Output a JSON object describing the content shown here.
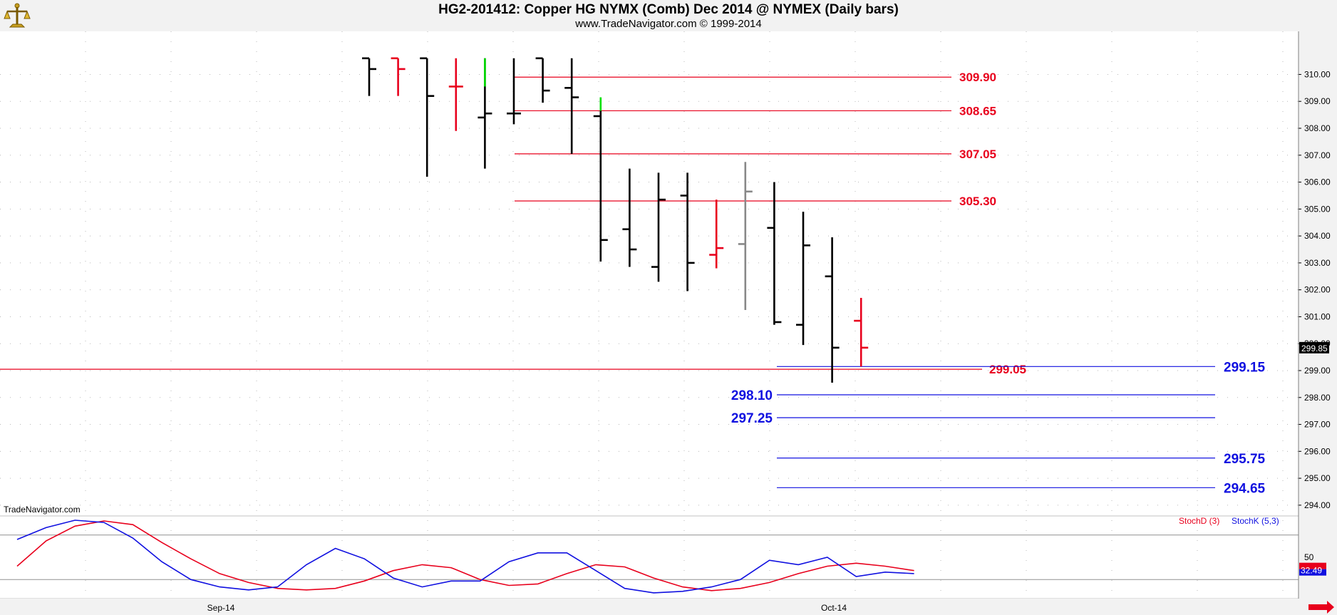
{
  "header": {
    "title": "HG2-201412:  Copper HG NYMX (Comb) Dec 2014 @ NYMEX  (Daily bars)",
    "subtitle": "www.TradeNavigator.com © 1999-2014",
    "logo_icon": "scales-logo-icon"
  },
  "watermark": "TradeNavigator.com",
  "colors": {
    "bar_default": "#000000",
    "bar_red": "#e8001c",
    "bar_green": "#00e000",
    "bar_gray": "#888888",
    "resistance": "#e8001c",
    "support": "#1010e0",
    "stoch_d": "#e8001c",
    "stoch_k": "#1010e0"
  },
  "chart_data": [
    {
      "type": "ohlc",
      "ylim": [
        293.6,
        311.6
      ],
      "y_ticks": [
        "310.00",
        "309.00",
        "308.00",
        "307.00",
        "306.00",
        "305.00",
        "304.00",
        "303.00",
        "302.00",
        "301.00",
        "300.00",
        "299.00",
        "298.00",
        "297.00",
        "296.00",
        "295.00",
        "294.00"
      ],
      "x_labels": [
        {
          "label": "Sep-14",
          "bar_index": 7
        },
        {
          "label": "Oct-14",
          "bar_index": 28
        }
      ],
      "bars": [
        {
          "o": 310.6,
          "h": 310.6,
          "l": 309.2,
          "c": 310.2,
          "color": "bar_default"
        },
        {
          "o": 310.6,
          "h": 310.6,
          "l": 309.2,
          "c": 310.2,
          "color": "bar_red"
        },
        {
          "o": 310.6,
          "h": 310.6,
          "l": 306.2,
          "c": 309.2,
          "color": "bar_default"
        },
        {
          "o": 309.55,
          "h": 310.6,
          "l": 307.9,
          "c": 309.55,
          "color": "bar_red"
        },
        {
          "o": 308.4,
          "h": 310.6,
          "l": 306.5,
          "c": 308.55,
          "color": "bar_default"
        },
        {
          "o": 308.55,
          "h": 310.6,
          "l": 308.15,
          "c": 308.55,
          "color": "bar_default"
        },
        {
          "o": 310.6,
          "h": 310.6,
          "l": 308.95,
          "c": 309.4,
          "color": "bar_default"
        },
        {
          "o": 309.5,
          "h": 310.6,
          "l": 307.05,
          "c": 309.15,
          "color": "bar_default"
        },
        {
          "o": 308.45,
          "h": 308.65,
          "l": 303.05,
          "c": 303.85,
          "color": "bar_default"
        },
        {
          "o": 304.25,
          "h": 306.5,
          "l": 302.85,
          "c": 303.5,
          "color": "bar_default"
        },
        {
          "o": 302.85,
          "h": 306.35,
          "l": 302.3,
          "c": 305.35,
          "color": "bar_default"
        },
        {
          "o": 305.5,
          "h": 306.35,
          "l": 301.95,
          "c": 303.0,
          "color": "bar_default"
        },
        {
          "o": 303.3,
          "h": 305.35,
          "l": 302.8,
          "c": 303.55,
          "color": "bar_red"
        },
        {
          "o": 303.7,
          "h": 306.75,
          "l": 301.25,
          "c": 305.65,
          "color": "bar_gray"
        },
        {
          "o": 304.3,
          "h": 306.0,
          "l": 300.7,
          "c": 300.8,
          "color": "bar_default"
        },
        {
          "o": 300.7,
          "h": 304.9,
          "l": 299.95,
          "c": 303.65,
          "color": "bar_default"
        },
        {
          "o": 302.5,
          "h": 303.95,
          "l": 298.55,
          "c": 299.85,
          "color": "bar_default"
        },
        {
          "o": 300.85,
          "h": 301.7,
          "l": 299.15,
          "c": 299.85,
          "color": "bar_red"
        }
      ],
      "last_price": "299.85",
      "resistance_levels": [
        {
          "label": "309.90",
          "value": 309.9
        },
        {
          "label": "308.65",
          "value": 308.65
        },
        {
          "label": "307.05",
          "value": 307.05
        },
        {
          "label": "305.30",
          "value": 305.3
        },
        {
          "label": "299.05",
          "value": 299.05
        }
      ],
      "support_levels": [
        {
          "label": "299.15",
          "value": 299.15
        },
        {
          "label": "298.10",
          "value": 298.1
        },
        {
          "label": "297.25",
          "value": 297.25
        },
        {
          "label": "295.75",
          "value": 295.75
        },
        {
          "label": "294.65",
          "value": 294.65
        }
      ]
    },
    {
      "type": "line",
      "ylim": [
        0,
        100
      ],
      "y_ticks": [
        "50"
      ],
      "reference_lines": [
        80,
        20
      ],
      "last_value": "32.49",
      "legend": [
        {
          "name": "StochD (3)",
          "color": "stoch_d"
        },
        {
          "name": "StochK (5,3)",
          "color": "stoch_k"
        }
      ],
      "series": [
        {
          "name": "StochD (3)",
          "color": "stoch_d",
          "values": [
            38,
            72,
            92,
            99,
            94,
            70,
            48,
            28,
            16,
            8,
            6,
            8,
            18,
            32,
            40,
            36,
            20,
            12,
            14,
            28,
            40,
            37,
            22,
            10,
            5,
            8,
            16,
            28,
            38,
            42,
            38,
            32
          ]
        },
        {
          "name": "StochK (5,3)",
          "color": "stoch_k",
          "values": [
            74,
            90,
            100,
            97,
            76,
            44,
            20,
            10,
            6,
            10,
            40,
            62,
            48,
            22,
            10,
            18,
            18,
            44,
            56,
            56,
            32,
            8,
            2,
            4,
            10,
            20,
            46,
            40,
            50,
            24,
            30,
            28
          ]
        }
      ]
    }
  ]
}
